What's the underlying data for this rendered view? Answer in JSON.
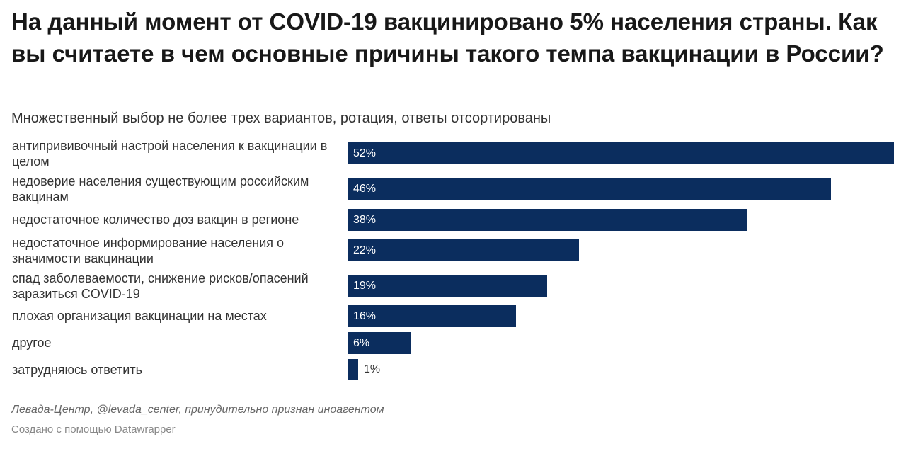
{
  "title": "На данный момент от COVID-19 вакцинировано 5% населения страны. Как вы считаете в чем основные причины такого темпа вакцинации в России?",
  "subtitle": "Множественный выбор не более трех вариантов, ротация, ответы отсортированы",
  "source": "Левада-Центр, @levada_center, принудительно признан иноагентом",
  "credit": "Создано с помощью Datawrapper",
  "colors": {
    "bar": "#0b2d5e",
    "bar_label": "#ffffff",
    "text": "#333333"
  },
  "chart_data": {
    "type": "bar",
    "orientation": "horizontal",
    "unit": "%",
    "xlim": [
      0,
      52
    ],
    "categories": [
      "антипрививочный настрой населения к вакцинации в целом",
      "недоверие населения существующим российским вакцинам",
      "недостаточное количество доз вакцин в регионе",
      "недостаточное информирование населения о значимости вакцинации",
      "спад заболеваемости, снижение рисков/опасений заразиться COVID-19",
      "плохая организация вакцинации на местах",
      "другое",
      "затрудняюсь ответить"
    ],
    "values": [
      52,
      46,
      38,
      22,
      19,
      16,
      6,
      1
    ],
    "labels": [
      "52%",
      "46%",
      "38%",
      "22%",
      "19%",
      "16%",
      "6%",
      "1%"
    ]
  }
}
